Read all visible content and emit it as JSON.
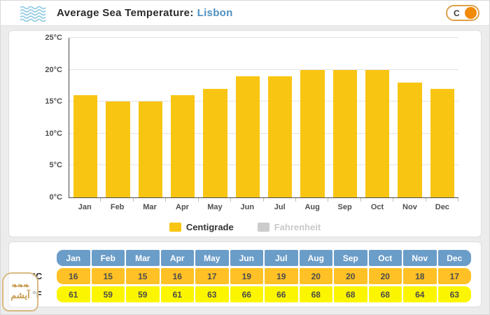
{
  "header": {
    "title": "Average Sea Temperature:",
    "location": "Lisbon",
    "toggle_label": "C"
  },
  "chart_data": {
    "type": "bar",
    "title": "Average Sea Temperature: Lisbon",
    "categories": [
      "Jan",
      "Feb",
      "Mar",
      "Apr",
      "May",
      "Jun",
      "Jul",
      "Aug",
      "Sep",
      "Oct",
      "Nov",
      "Dec"
    ],
    "series": [
      {
        "name": "Centigrade",
        "values": [
          16,
          15,
          15,
          16,
          17,
          19,
          19,
          20,
          20,
          20,
          18,
          17
        ],
        "color": "#F9C513",
        "visible": true
      },
      {
        "name": "Fahrenheit",
        "values": [
          61,
          59,
          59,
          61,
          63,
          66,
          66,
          68,
          68,
          68,
          64,
          63
        ],
        "color": "#CCCCCC",
        "visible": false
      }
    ],
    "xlabel": "",
    "ylabel": "",
    "ylim": [
      0,
      25
    ],
    "yticks": [
      0,
      5,
      10,
      15,
      20,
      25
    ],
    "ytick_suffix": "°C",
    "grid": true,
    "legend_position": "bottom"
  },
  "table": {
    "months": [
      "Jan",
      "Feb",
      "Mar",
      "Apr",
      "May",
      "Jun",
      "Jul",
      "Aug",
      "Sep",
      "Oct",
      "Nov",
      "Dec"
    ],
    "rows": [
      {
        "label": "°C",
        "values": [
          16,
          15,
          15,
          16,
          17,
          19,
          19,
          20,
          20,
          20,
          18,
          17
        ]
      },
      {
        "label": "°F",
        "values": [
          61,
          59,
          59,
          61,
          63,
          66,
          66,
          68,
          68,
          68,
          64,
          63
        ]
      }
    ]
  },
  "watermark": {
    "text": "آیشم"
  },
  "colors": {
    "bar": "#F9C513",
    "table_header": "#6B9DC9",
    "table_c_row": "#FFC125",
    "table_f_row": "#FBF500",
    "location_text": "#4E8FC0",
    "toggle_knob": "#F28A05",
    "toggle_border": "#DFA049",
    "legend_disabled": "#C9C9C9"
  }
}
